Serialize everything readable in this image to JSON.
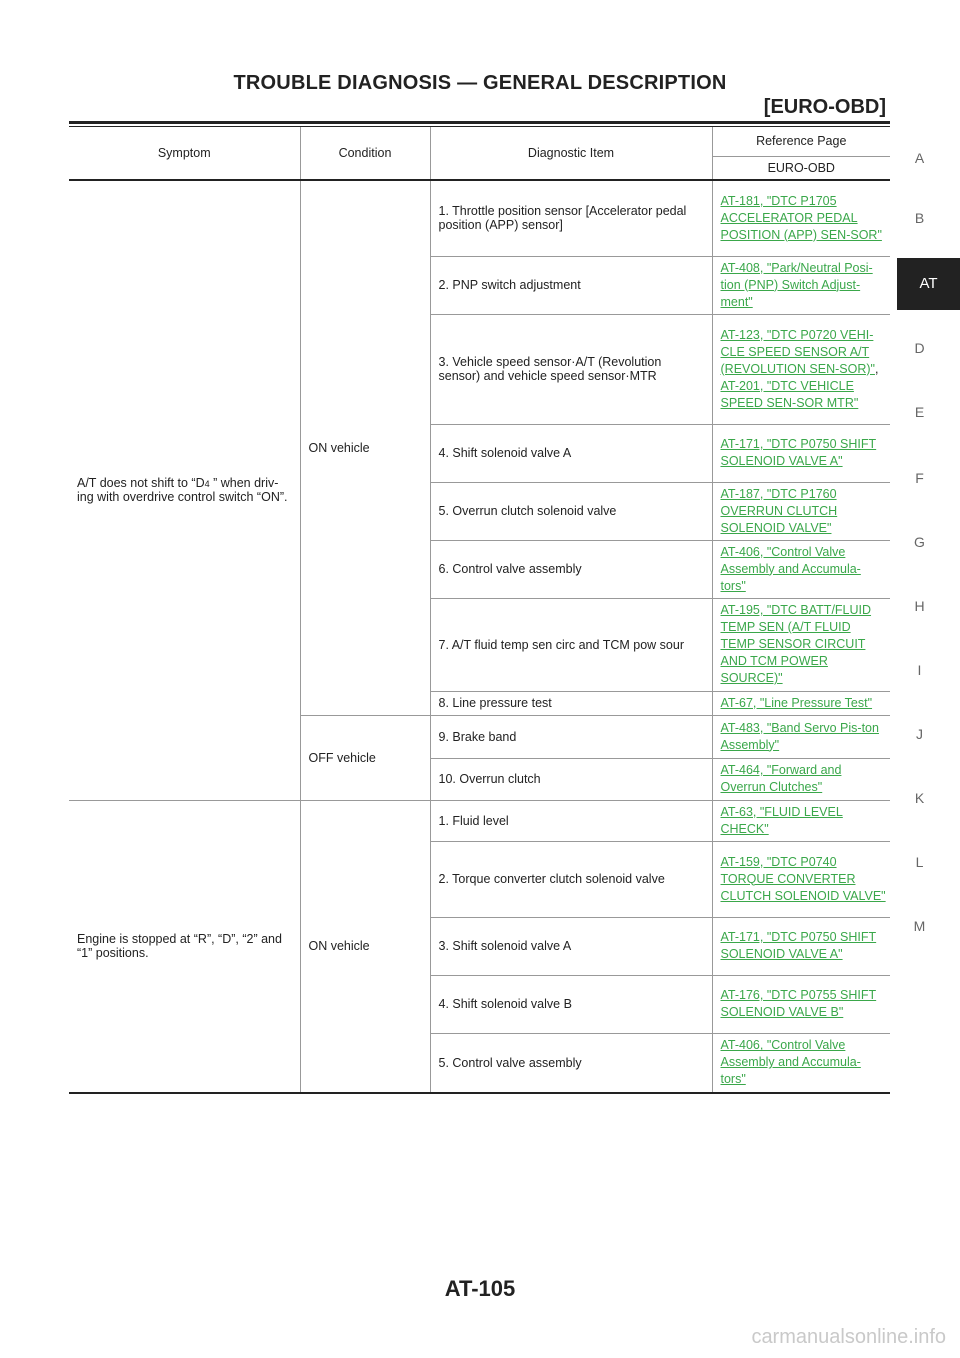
{
  "header": {
    "title": "TROUBLE DIAGNOSIS — GENERAL DESCRIPTION",
    "subtitle": "[EURO-OBD]"
  },
  "side_index": {
    "letters": [
      "A",
      "B",
      "AT",
      "D",
      "E",
      "F",
      "G",
      "H",
      "I",
      "J",
      "K",
      "L",
      "M"
    ],
    "active": "AT"
  },
  "table": {
    "columns": {
      "symptom": "Symptom",
      "condition": "Condition",
      "diagnostic_item": "Diagnostic Item",
      "reference_page": "Reference Page",
      "reference_sub": "EURO-OBD"
    },
    "groups": [
      {
        "symptom_pre": "A/T does not shift to “D",
        "symptom_sub": "4",
        "symptom_post": " ” when driv-ing with overdrive control switch “ON”.",
        "conditions": [
          {
            "label": "ON vehicle",
            "items": [
              {
                "item": "1. Throttle position sensor [Accelerator pedal position (APP) sensor]",
                "refs": [
                  "AT-181, \"DTC P1705 ACCELERATOR PEDAL POSITION (APP) SEN-SOR\""
                ]
              },
              {
                "item": "2. PNP switch adjustment",
                "refs": [
                  "AT-408, \"Park/Neutral Posi-tion (PNP) Switch Adjust-ment\""
                ]
              },
              {
                "item": "3. Vehicle speed sensor·A/T (Revolution sensor) and vehicle speed sensor·MTR",
                "refs": [
                  "AT-123, \"DTC P0720 VEHI-CLE SPEED SENSOR A/T (REVOLUTION SEN-SOR)\"",
                  "AT-201, \"DTC VEHICLE SPEED SEN-SOR MTR\""
                ]
              },
              {
                "item": "4. Shift solenoid valve A",
                "refs": [
                  "AT-171, \"DTC P0750 SHIFT SOLENOID VALVE A\""
                ]
              },
              {
                "item": "5. Overrun clutch solenoid valve",
                "refs": [
                  "AT-187, \"DTC P1760 OVERRUN CLUTCH SOLENOID VALVE\""
                ]
              },
              {
                "item": "6. Control valve assembly",
                "refs": [
                  "AT-406, \"Control Valve Assembly and Accumula-tors\""
                ]
              },
              {
                "item": "7. A/T fluid temp sen circ and TCM pow sour",
                "refs": [
                  "AT-195, \"DTC BATT/FLUID TEMP SEN (A/T FLUID TEMP SENSOR CIRCUIT AND TCM POWER SOURCE)\""
                ]
              },
              {
                "item": "8. Line pressure test",
                "refs": [
                  "AT-67, \"Line Pressure Test\""
                ]
              }
            ]
          },
          {
            "label": "OFF vehicle",
            "items": [
              {
                "item": "9. Brake band",
                "refs": [
                  "AT-483, \"Band Servo Pis-ton Assembly\""
                ]
              },
              {
                "item": "10. Overrun clutch",
                "refs": [
                  "AT-464, \"Forward and Overrun Clutches\""
                ]
              }
            ]
          }
        ]
      },
      {
        "symptom": "Engine is stopped at “R”, “D”, “2” and “1” positions.",
        "conditions": [
          {
            "label": "ON vehicle",
            "items": [
              {
                "item": "1. Fluid level",
                "refs": [
                  "AT-63, \"FLUID LEVEL CHECK\""
                ]
              },
              {
                "item": "2. Torque converter clutch solenoid valve",
                "refs": [
                  "AT-159, \"DTC P0740 TORQUE CONVERTER CLUTCH SOLENOID VALVE\""
                ]
              },
              {
                "item": "3. Shift solenoid valve A",
                "refs": [
                  "AT-171, \"DTC P0750 SHIFT SOLENOID VALVE A\""
                ]
              },
              {
                "item": "4. Shift solenoid valve B",
                "refs": [
                  "AT-176, \"DTC P0755 SHIFT SOLENOID VALVE B\""
                ]
              },
              {
                "item": "5. Control valve assembly",
                "refs": [
                  "AT-406, \"Control Valve Assembly and Accumula-tors\""
                ]
              }
            ]
          }
        ]
      }
    ]
  },
  "footer": {
    "page_number": "AT-105"
  },
  "watermark": "carmanualsonline.info"
}
